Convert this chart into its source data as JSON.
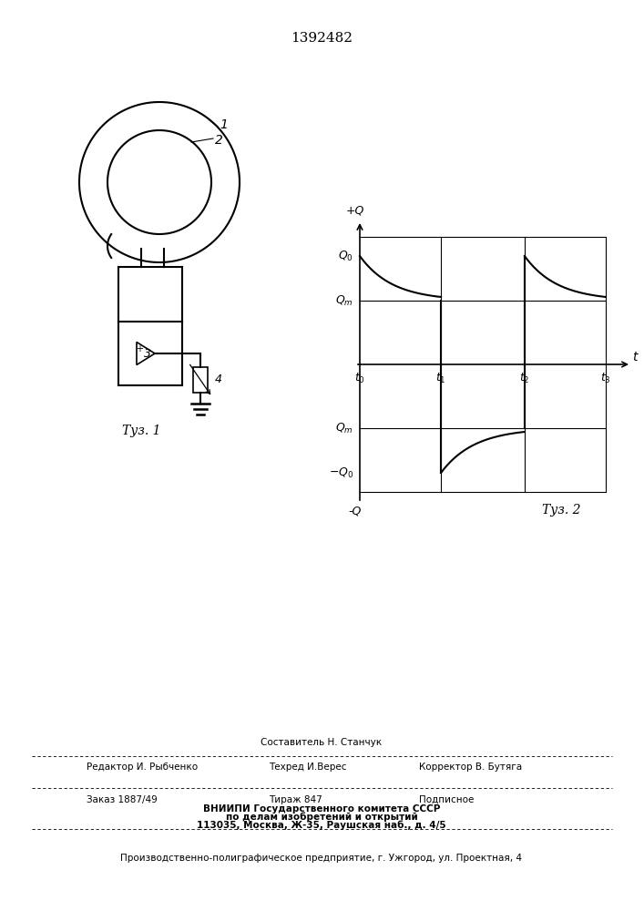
{
  "patent_number": "1392482",
  "fig1_label": "Τуз. 1",
  "fig2_label": "Τуз. 2",
  "background_color": "#ffffff",
  "line_color": "#000000",
  "footer_sestavitel": "Составитель Н. Станчук",
  "footer_redaktor": "Редактор И. Рыбченко",
  "footer_tehred": "Техред И.Верес",
  "footer_korrektor": "Корректор В. Бутяга",
  "footer_zakaz": "Заказ 1887/49",
  "footer_tirazh": "Тираж 847",
  "footer_podpisnoe": "Подписное",
  "footer_vniip1": "ВНИИПИ Государственного комитета СССР",
  "footer_vniip2": "по делам изобретений и открытий",
  "footer_vniip3": "113035, Москва, Ж-35, Раушская наб., д. 4/5",
  "footer_proizv": "Производственно-полиграфическое предприятие, г. Ужгород, ул. Проектная, 4"
}
